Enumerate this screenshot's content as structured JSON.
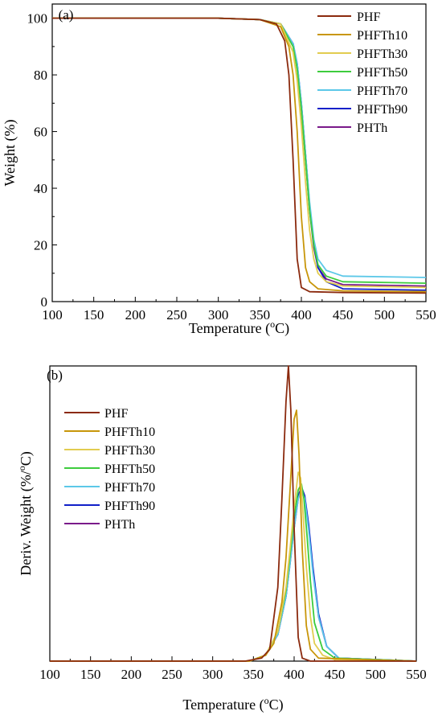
{
  "chart_data": [
    {
      "type": "line",
      "panel_label": "(a)",
      "xlabel": "Temperature (",
      "xlabel_sup": "o",
      "xlabel_end": "C)",
      "ylabel": "Weight (%)",
      "xlim": [
        100,
        550
      ],
      "ylim": [
        0,
        105
      ],
      "xticks": [
        100,
        150,
        200,
        250,
        300,
        350,
        400,
        450,
        500,
        550
      ],
      "yticks": [
        0,
        20,
        40,
        60,
        80,
        100
      ],
      "legend_position": "top-right",
      "grid": false,
      "series": [
        {
          "name": "PHF",
          "color": "#8B2A0E",
          "x": [
            100,
            300,
            350,
            370,
            380,
            385,
            390,
            395,
            400,
            410,
            450,
            550
          ],
          "y": [
            100,
            100,
            99.5,
            98,
            92,
            80,
            50,
            15,
            5,
            3.5,
            3.2,
            3
          ]
        },
        {
          "name": "PHFTh10",
          "color": "#C8960A",
          "x": [
            100,
            300,
            350,
            375,
            385,
            390,
            395,
            400,
            405,
            410,
            420,
            450,
            550
          ],
          "y": [
            100,
            100,
            99.5,
            97,
            90,
            80,
            60,
            30,
            12,
            7,
            4.5,
            3.8,
            3.5
          ]
        },
        {
          "name": "PHFTh30",
          "color": "#E2CC50",
          "x": [
            100,
            300,
            350,
            375,
            390,
            395,
            400,
            405,
            410,
            415,
            420,
            430,
            450,
            550
          ],
          "y": [
            100,
            100,
            99.5,
            98,
            88,
            78,
            62,
            42,
            25,
            15,
            10,
            7,
            5.5,
            5
          ]
        },
        {
          "name": "PHFTh50",
          "color": "#3DCC3D",
          "x": [
            100,
            300,
            350,
            375,
            390,
            395,
            400,
            405,
            410,
            415,
            420,
            430,
            450,
            550
          ],
          "y": [
            100,
            100,
            99.5,
            98,
            90,
            82,
            68,
            50,
            32,
            20,
            13,
            9,
            7,
            6.5
          ]
        },
        {
          "name": "PHFTh70",
          "color": "#5CC8E8",
          "x": [
            100,
            300,
            350,
            375,
            390,
            395,
            400,
            405,
            410,
            415,
            420,
            430,
            450,
            550
          ],
          "y": [
            100,
            100,
            99.5,
            98,
            91,
            84,
            70,
            52,
            35,
            22,
            15,
            11,
            9,
            8.5
          ]
        },
        {
          "name": "PHFTh90",
          "color": "#1020C8",
          "x": [
            100,
            300,
            350,
            375,
            390,
            395,
            400,
            405,
            410,
            415,
            420,
            430,
            450,
            550
          ],
          "y": [
            100,
            100,
            99.5,
            98,
            91,
            84,
            70,
            52,
            34,
            20,
            12,
            7,
            4.5,
            4
          ]
        },
        {
          "name": "PHTh",
          "color": "#7A1A8A",
          "x": [
            100,
            300,
            350,
            375,
            390,
            395,
            400,
            405,
            410,
            415,
            420,
            430,
            450,
            550
          ],
          "y": [
            100,
            100,
            99.5,
            98,
            91,
            83,
            68,
            50,
            32,
            19,
            12,
            8,
            6,
            5.5
          ]
        }
      ]
    },
    {
      "type": "line",
      "panel_label": "(b)",
      "xlabel": "Temperature (",
      "xlabel_sup": "o",
      "xlabel_end": "C)",
      "ylabel": "Deriv. Weight (%/",
      "ylabel_sup": "o",
      "ylabel_end": "C)",
      "xlim": [
        100,
        550
      ],
      "ylim": [
        0,
        1
      ],
      "xticks": [
        100,
        150,
        200,
        250,
        300,
        350,
        400,
        450,
        500,
        550
      ],
      "yticks": [],
      "legend_position": "top-left",
      "grid": false,
      "series": [
        {
          "name": "PHF",
          "color": "#8B2A0E",
          "x": [
            100,
            340,
            360,
            370,
            380,
            385,
            390,
            393,
            396,
            400,
            405,
            410,
            420,
            550
          ],
          "y": [
            0,
            0,
            0.01,
            0.04,
            0.25,
            0.55,
            0.88,
            1.0,
            0.85,
            0.45,
            0.08,
            0.01,
            0,
            0
          ]
        },
        {
          "name": "PHFTh10",
          "color": "#C8960A",
          "x": [
            100,
            345,
            365,
            375,
            385,
            390,
            395,
            400,
            403,
            406,
            410,
            415,
            420,
            430,
            550
          ],
          "y": [
            0,
            0,
            0.02,
            0.06,
            0.2,
            0.35,
            0.58,
            0.82,
            0.85,
            0.7,
            0.38,
            0.12,
            0.04,
            0.01,
            0
          ]
        },
        {
          "name": "PHFTh30",
          "color": "#E2CC50",
          "x": [
            100,
            345,
            365,
            380,
            390,
            395,
            400,
            405,
            408,
            411,
            415,
            420,
            425,
            435,
            450,
            550
          ],
          "y": [
            0,
            0,
            0.02,
            0.1,
            0.25,
            0.38,
            0.52,
            0.64,
            0.62,
            0.5,
            0.32,
            0.15,
            0.06,
            0.02,
            0.005,
            0
          ]
        },
        {
          "name": "PHFTh50",
          "color": "#3DCC3D",
          "x": [
            100,
            345,
            365,
            380,
            390,
            395,
            400,
            405,
            409,
            412,
            416,
            420,
            425,
            435,
            450,
            550
          ],
          "y": [
            0,
            0,
            0.02,
            0.1,
            0.24,
            0.36,
            0.49,
            0.58,
            0.6,
            0.55,
            0.42,
            0.27,
            0.13,
            0.04,
            0.01,
            0
          ]
        },
        {
          "name": "PHFTh70",
          "color": "#5CC8E8",
          "x": [
            100,
            345,
            365,
            380,
            390,
            395,
            400,
            405,
            409,
            413,
            418,
            423,
            430,
            440,
            455,
            550
          ],
          "y": [
            0,
            0,
            0.02,
            0.09,
            0.22,
            0.33,
            0.45,
            0.55,
            0.58,
            0.55,
            0.44,
            0.3,
            0.15,
            0.05,
            0.01,
            0
          ]
        },
        {
          "name": "PHFTh90",
          "color": "#1020C8",
          "x": [
            100,
            345,
            365,
            380,
            390,
            395,
            400,
            405,
            409,
            413,
            418,
            423,
            430,
            440,
            455,
            550
          ],
          "y": [
            0,
            0,
            0.02,
            0.09,
            0.22,
            0.34,
            0.46,
            0.56,
            0.59,
            0.56,
            0.46,
            0.32,
            0.16,
            0.05,
            0.01,
            0
          ]
        },
        {
          "name": "PHTh",
          "color": "#7A1A8A",
          "x": [
            100,
            345,
            365,
            380,
            390,
            395,
            400,
            405,
            409,
            413,
            418,
            423,
            430,
            440,
            455,
            550
          ],
          "y": [
            0,
            0,
            0.02,
            0.09,
            0.22,
            0.33,
            0.45,
            0.55,
            0.58,
            0.55,
            0.45,
            0.31,
            0.15,
            0.05,
            0.01,
            0
          ]
        }
      ]
    }
  ]
}
